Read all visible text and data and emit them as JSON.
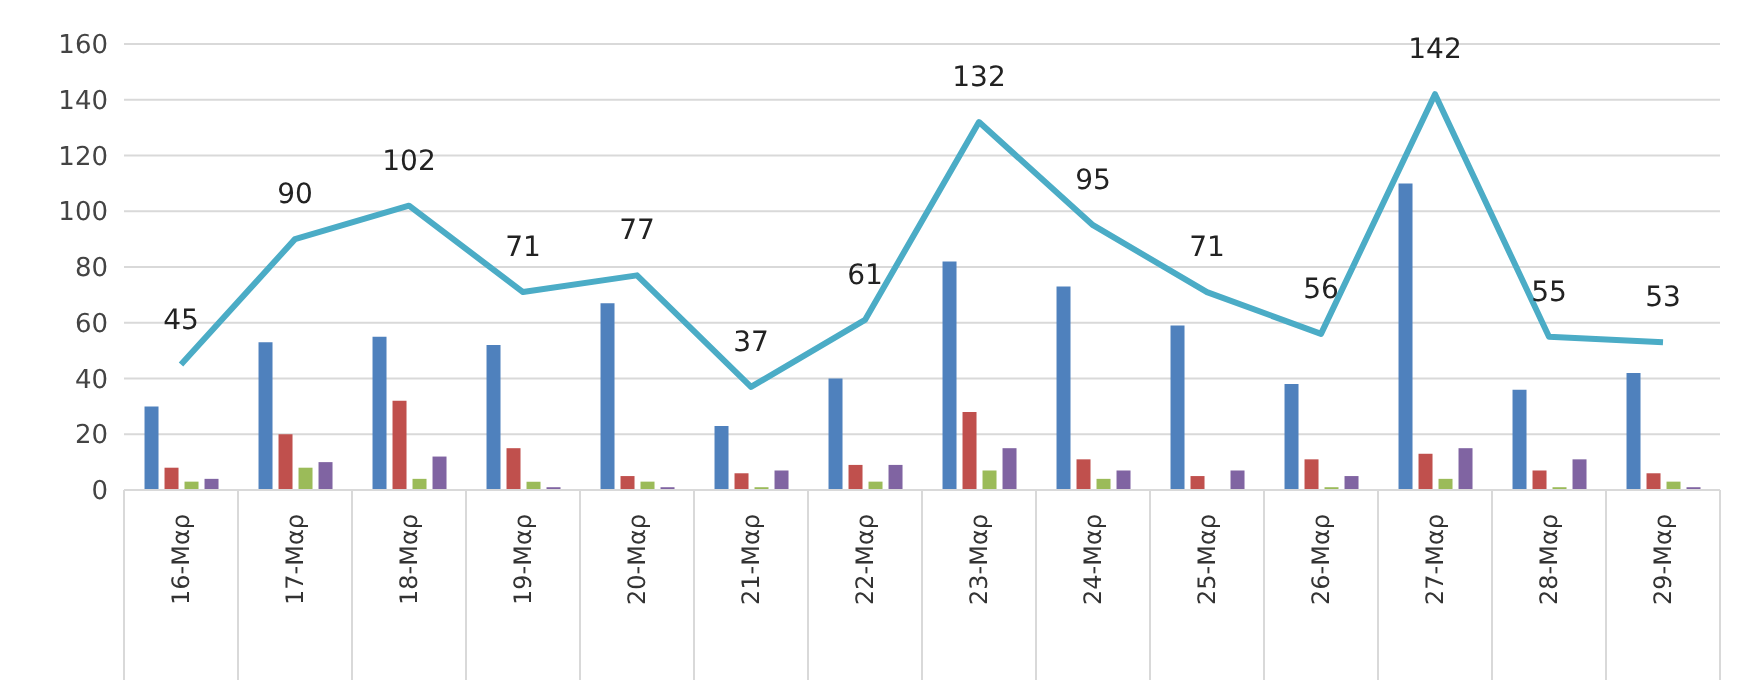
{
  "chart_data": {
    "type": "bar",
    "categories": [
      "16-Μαρ",
      "17-Μαρ",
      "18-Μαρ",
      "19-Μαρ",
      "20-Μαρ",
      "21-Μαρ",
      "22-Μαρ",
      "23-Μαρ",
      "24-Μαρ",
      "25-Μαρ",
      "26-Μαρ",
      "27-Μαρ",
      "28-Μαρ",
      "29-Μαρ"
    ],
    "series": [
      {
        "color": "#4f81bd",
        "values": [
          30,
          53,
          55,
          52,
          67,
          23,
          40,
          82,
          73,
          59,
          38,
          110,
          36,
          42
        ]
      },
      {
        "color": "#c0504d",
        "values": [
          8,
          20,
          32,
          15,
          5,
          6,
          9,
          28,
          11,
          5,
          11,
          13,
          7,
          6
        ]
      },
      {
        "color": "#9bbb59",
        "values": [
          3,
          8,
          4,
          3,
          3,
          1,
          3,
          7,
          4,
          0,
          1,
          4,
          1,
          3
        ]
      },
      {
        "color": "#8064a2",
        "values": [
          4,
          10,
          12,
          1,
          1,
          7,
          9,
          15,
          7,
          7,
          5,
          15,
          11,
          1
        ]
      },
      {
        "type": "line",
        "color": "#4bacc6",
        "values": [
          45,
          90,
          102,
          71,
          77,
          37,
          61,
          132,
          95,
          71,
          56,
          142,
          55,
          53
        ],
        "value_labels": [
          "45",
          "90",
          "102",
          "71",
          "77",
          "37",
          "61",
          "132",
          "95",
          "71",
          "56",
          "142",
          "55",
          "53"
        ]
      }
    ],
    "ylim": [
      0,
      160
    ],
    "yticks": [
      0,
      20,
      40,
      60,
      80,
      100,
      120,
      140,
      160
    ],
    "grid": "y",
    "legend": false,
    "marker": "none"
  }
}
